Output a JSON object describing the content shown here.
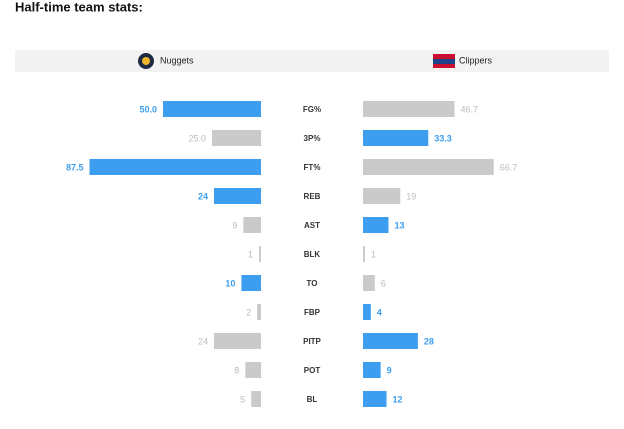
{
  "chart_data": {
    "type": "butterfly",
    "title": "Half-time team stats:",
    "categories": [
      "FG%",
      "3P%",
      "FT%",
      "REB",
      "AST",
      "BLK",
      "TO",
      "FBP",
      "PITP",
      "POT",
      "BL"
    ],
    "series": [
      {
        "name": "Nuggets",
        "values": [
          50.0,
          25.0,
          87.5,
          24,
          9,
          1,
          10,
          2,
          24,
          8,
          5
        ],
        "value_labels": [
          "50.0",
          "25.0",
          "87.5",
          "24",
          "9",
          "1",
          "10",
          "2",
          "24",
          "8",
          "5"
        ]
      },
      {
        "name": "Clippers",
        "values": [
          46.7,
          33.3,
          66.7,
          19,
          13,
          1,
          6,
          4,
          28,
          9,
          12
        ],
        "value_labels": [
          "46.7",
          "33.3",
          "66.7",
          "19",
          "13",
          "1",
          "6",
          "4",
          "28",
          "9",
          "12"
        ]
      }
    ],
    "xlim": [
      0,
      100
    ],
    "highlight_color": "#3d9ef0",
    "base_color": "#cacaca"
  }
}
